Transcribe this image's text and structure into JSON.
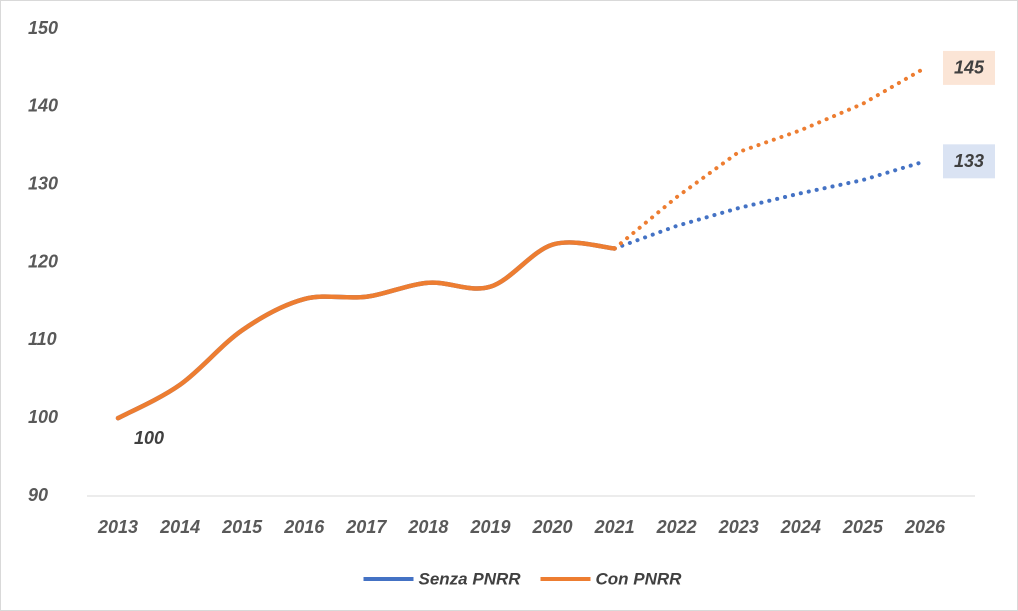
{
  "chart_data": {
    "type": "line",
    "categories": [
      "2013",
      "2014",
      "2015",
      "2016",
      "2017",
      "2018",
      "2019",
      "2020",
      "2021",
      "2022",
      "2023",
      "2024",
      "2025",
      "2026"
    ],
    "dotted_after": "2021",
    "series": [
      {
        "name": "Senza PNRR",
        "color": "#4472c4",
        "values": [
          100,
          104.3,
          111.3,
          115.3,
          115.6,
          117.4,
          116.9,
          122.3,
          121.8,
          124.7,
          127,
          128.9,
          130.6,
          133
        ]
      },
      {
        "name": "Con PNRR",
        "color": "#ed7d31",
        "values": [
          100,
          104.3,
          111.3,
          115.3,
          115.6,
          117.4,
          116.9,
          122.3,
          121.8,
          128.4,
          134.2,
          137,
          140.4,
          145
        ]
      }
    ],
    "ylim": [
      90,
      150
    ],
    "yticks": [
      90,
      100,
      110,
      120,
      130,
      140,
      150
    ],
    "grid": false,
    "legend": "bottom"
  }
}
